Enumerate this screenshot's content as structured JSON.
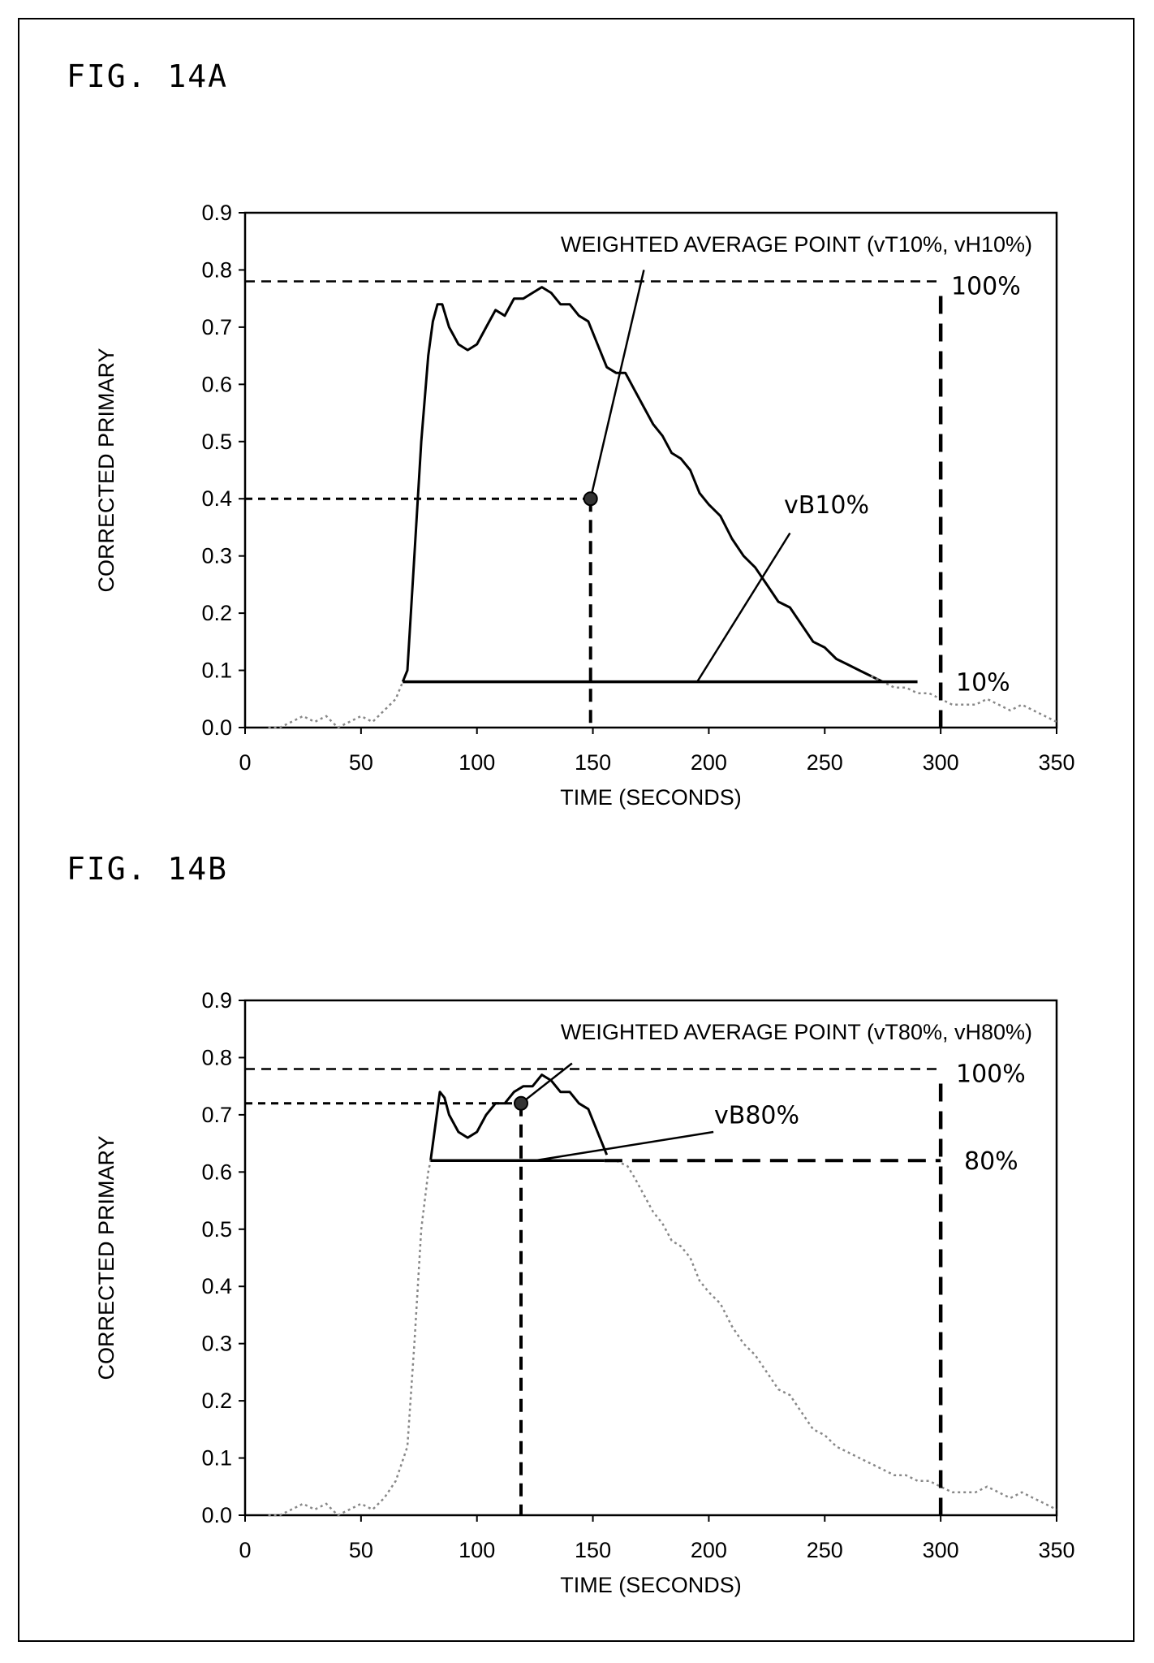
{
  "figures": [
    {
      "label": "FIG. 14A"
    },
    {
      "label": "FIG. 14B"
    }
  ],
  "chart_data": [
    {
      "type": "line",
      "xlabel": "TIME (SECONDS)",
      "ylabel": "CORRECTED PRIMARY",
      "xlim": [
        0,
        350
      ],
      "ylim": [
        0,
        0.9
      ],
      "x_ticks": [
        "0",
        "50",
        "100",
        "150",
        "200",
        "250",
        "300",
        "350"
      ],
      "y_ticks": [
        "0.0",
        "0.1",
        "0.2",
        "0.3",
        "0.4",
        "0.5",
        "0.6",
        "0.7",
        "0.8",
        "0.9"
      ],
      "grid": false,
      "series": [
        {
          "style": "solid-black",
          "x": [
            68,
            70,
            73,
            76,
            79,
            81,
            83,
            85,
            88,
            92,
            96,
            100,
            104,
            108,
            112,
            116,
            120,
            124,
            128,
            132,
            136,
            140,
            144,
            148,
            152,
            156,
            160,
            164,
            168,
            172,
            176,
            180,
            184,
            188,
            192,
            196,
            200,
            205,
            210,
            215,
            220,
            225,
            230,
            235,
            240,
            245,
            250,
            255,
            260,
            265,
            270,
            275,
            280,
            285
          ],
          "y": [
            0.08,
            0.1,
            0.3,
            0.5,
            0.65,
            0.71,
            0.74,
            0.74,
            0.7,
            0.67,
            0.66,
            0.67,
            0.7,
            0.73,
            0.72,
            0.75,
            0.75,
            0.76,
            0.77,
            0.76,
            0.74,
            0.74,
            0.72,
            0.71,
            0.67,
            0.63,
            0.62,
            0.62,
            0.59,
            0.56,
            0.53,
            0.51,
            0.48,
            0.47,
            0.45,
            0.41,
            0.39,
            0.37,
            0.33,
            0.3,
            0.28,
            0.25,
            0.22,
            0.21,
            0.18,
            0.15,
            0.14,
            0.12,
            0.11,
            0.1,
            0.09,
            0.08,
            0.08,
            0.08
          ]
        },
        {
          "style": "dotted-gray",
          "x": [
            10,
            15,
            20,
            25,
            30,
            35,
            40,
            45,
            50,
            55,
            60,
            65,
            68
          ],
          "y": [
            0.0,
            0.0,
            0.01,
            0.02,
            0.01,
            0.02,
            0.0,
            0.01,
            0.02,
            0.01,
            0.03,
            0.05,
            0.08
          ]
        },
        {
          "style": "dotted-gray",
          "x": [
            270,
            275,
            280,
            285,
            290,
            295,
            300,
            305,
            310,
            315,
            320,
            325,
            330,
            335,
            340,
            345,
            350
          ],
          "y": [
            0.09,
            0.08,
            0.07,
            0.07,
            0.06,
            0.06,
            0.05,
            0.04,
            0.04,
            0.04,
            0.05,
            0.04,
            0.03,
            0.04,
            0.03,
            0.02,
            0.01
          ]
        }
      ],
      "annotations": {
        "title_text": "WEIGHTED AVERAGE POINT (vT10%, vH10%)",
        "top_pct": "100%",
        "base_pct": "10%",
        "base_label": "vB10%",
        "point": [
          149,
          0.4
        ],
        "level_100": 0.78,
        "level_base": 0.08,
        "x_end": 300
      }
    },
    {
      "type": "line",
      "xlabel": "TIME (SECONDS)",
      "ylabel": "CORRECTED PRIMARY",
      "xlim": [
        0,
        350
      ],
      "ylim": [
        0,
        0.9
      ],
      "x_ticks": [
        "0",
        "50",
        "100",
        "150",
        "200",
        "250",
        "300",
        "350"
      ],
      "y_ticks": [
        "0.0",
        "0.1",
        "0.2",
        "0.3",
        "0.4",
        "0.5",
        "0.6",
        "0.7",
        "0.8",
        "0.9"
      ],
      "grid": false,
      "series": [
        {
          "style": "solid-black",
          "x": [
            80,
            82,
            84,
            86,
            88,
            92,
            96,
            100,
            104,
            108,
            112,
            116,
            120,
            124,
            128,
            132,
            136,
            140,
            144,
            148,
            152,
            156
          ],
          "y": [
            0.62,
            0.68,
            0.74,
            0.73,
            0.7,
            0.67,
            0.66,
            0.67,
            0.7,
            0.72,
            0.72,
            0.74,
            0.75,
            0.75,
            0.77,
            0.76,
            0.74,
            0.74,
            0.72,
            0.71,
            0.67,
            0.63
          ]
        },
        {
          "style": "dotted-gray",
          "x": [
            10,
            15,
            20,
            25,
            30,
            35,
            40,
            45,
            50,
            55,
            60,
            65,
            70,
            73,
            76,
            79,
            80,
            90,
            100,
            110,
            120,
            130,
            140,
            150,
            160,
            165,
            168,
            172,
            176,
            180,
            184,
            188,
            192,
            196,
            200,
            205,
            210,
            215,
            220,
            225,
            230,
            235,
            240,
            245,
            250,
            255,
            260,
            265,
            270,
            275,
            280,
            285,
            290,
            295,
            300,
            305,
            310,
            315,
            320,
            325,
            330,
            335,
            340,
            345,
            350
          ],
          "y": [
            0.0,
            0.0,
            0.01,
            0.02,
            0.01,
            0.02,
            0.0,
            0.01,
            0.02,
            0.01,
            0.03,
            0.06,
            0.12,
            0.3,
            0.5,
            0.6,
            0.62,
            0.62,
            0.62,
            0.62,
            0.62,
            0.62,
            0.62,
            0.62,
            0.62,
            0.61,
            0.59,
            0.56,
            0.53,
            0.51,
            0.48,
            0.47,
            0.45,
            0.41,
            0.39,
            0.37,
            0.33,
            0.3,
            0.28,
            0.25,
            0.22,
            0.21,
            0.18,
            0.15,
            0.14,
            0.12,
            0.11,
            0.1,
            0.09,
            0.08,
            0.07,
            0.07,
            0.06,
            0.06,
            0.05,
            0.04,
            0.04,
            0.04,
            0.05,
            0.04,
            0.03,
            0.04,
            0.03,
            0.02,
            0.01
          ]
        }
      ],
      "annotations": {
        "title_text": "WEIGHTED AVERAGE POINT (vT80%, vH80%)",
        "top_pct": "100%",
        "base_pct": "80%",
        "base_label": "vB80%",
        "point": [
          119,
          0.72
        ],
        "level_100": 0.78,
        "level_base": 0.62,
        "x_end": 300
      }
    }
  ]
}
